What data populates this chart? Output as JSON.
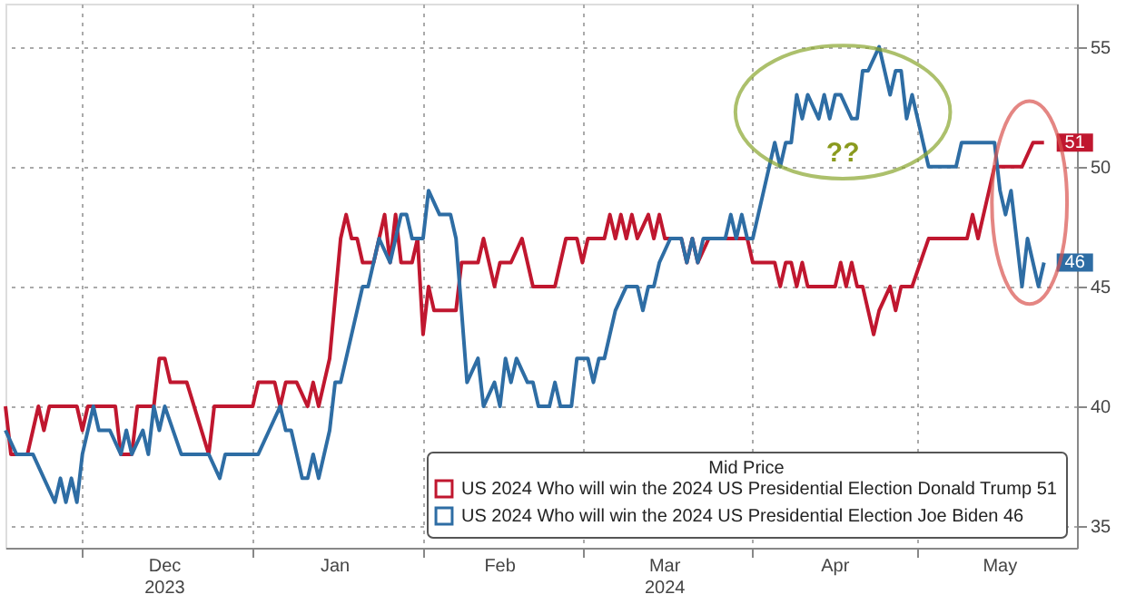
{
  "chart_data": {
    "type": "line",
    "legend_title": "Mid Price",
    "annotations": [
      "??"
    ],
    "xlim": [
      "2023-11-17",
      "2024-05-30"
    ],
    "xticks": [
      {
        "value": "2023-12-01",
        "label": null
      },
      {
        "value": "2023-12-16",
        "label": "Dec\n2023"
      },
      {
        "value": "2024-01-01",
        "label": null
      },
      {
        "value": "2024-01-16",
        "label": "Jan"
      },
      {
        "value": "2024-02-01",
        "label": null
      },
      {
        "value": "2024-02-15",
        "label": "Feb"
      },
      {
        "value": "2024-03-01",
        "label": null
      },
      {
        "value": "2024-03-16",
        "label": "Mar\n2024"
      },
      {
        "value": "2024-04-01",
        "label": null
      },
      {
        "value": "2024-04-16",
        "label": "Apr"
      },
      {
        "value": "2024-05-01",
        "label": null
      },
      {
        "value": "2024-05-16",
        "label": "May"
      }
    ],
    "ylim": [
      34.1,
      56.8
    ],
    "yticks": [
      35,
      40,
      45,
      50,
      55
    ],
    "grid": true,
    "legend": "bottom right",
    "series": [
      {
        "name": "US 2024 Who will win the 2024 US Presidential Election Donald Trump 51",
        "color": "#c0172f",
        "x": [
          "2023-11-17",
          "2023-11-18",
          "2023-11-21",
          "2023-11-22",
          "2023-11-23",
          "2023-11-24",
          "2023-11-25",
          "2023-11-30",
          "2023-12-01",
          "2023-12-02",
          "2023-12-07",
          "2023-12-08",
          "2023-12-10",
          "2023-12-11",
          "2023-12-14",
          "2023-12-15",
          "2023-12-16",
          "2023-12-17",
          "2023-12-20",
          "2023-12-24",
          "2023-12-25",
          "2024-01-01",
          "2024-01-02",
          "2024-01-05",
          "2024-01-06",
          "2024-01-07",
          "2024-01-09",
          "2024-01-11",
          "2024-01-12",
          "2024-01-13",
          "2024-01-14",
          "2024-01-15",
          "2024-01-17",
          "2024-01-18",
          "2024-01-19",
          "2024-01-20",
          "2024-01-21",
          "2024-01-23",
          "2024-01-24",
          "2024-01-25",
          "2024-01-26",
          "2024-01-27",
          "2024-01-28",
          "2024-01-30",
          "2024-01-31",
          "2024-02-01",
          "2024-02-02",
          "2024-02-03",
          "2024-02-07",
          "2024-02-08",
          "2024-02-11",
          "2024-02-12",
          "2024-02-14",
          "2024-02-15",
          "2024-02-17",
          "2024-02-19",
          "2024-02-21",
          "2024-02-25",
          "2024-02-27",
          "2024-02-29",
          "2024-03-01",
          "2024-03-02",
          "2024-03-05",
          "2024-03-06",
          "2024-03-07",
          "2024-03-08",
          "2024-03-09",
          "2024-03-10",
          "2024-03-11",
          "2024-03-13",
          "2024-03-14",
          "2024-03-15",
          "2024-03-16",
          "2024-03-19",
          "2024-03-20",
          "2024-03-21",
          "2024-03-22",
          "2024-03-24",
          "2024-03-31",
          "2024-04-01",
          "2024-04-05",
          "2024-04-06",
          "2024-04-07",
          "2024-04-08",
          "2024-04-09",
          "2024-04-10",
          "2024-04-11",
          "2024-04-16",
          "2024-04-17",
          "2024-04-18",
          "2024-04-19",
          "2024-04-20",
          "2024-04-21",
          "2024-04-22",
          "2024-04-23",
          "2024-04-24",
          "2024-04-26",
          "2024-04-27",
          "2024-04-28",
          "2024-04-30",
          "2024-05-03",
          "2024-05-10",
          "2024-05-11",
          "2024-05-12",
          "2024-05-14",
          "2024-05-15",
          "2024-05-20",
          "2024-05-22",
          "2024-05-24"
        ],
        "values": [
          40,
          38,
          38,
          39,
          40,
          39,
          40,
          40,
          39,
          40,
          40,
          38,
          38,
          40,
          40,
          42,
          42,
          41,
          41,
          38,
          40,
          40,
          41,
          41,
          40,
          41,
          41,
          40,
          41,
          40,
          41,
          42,
          47,
          48,
          47,
          47,
          46,
          46,
          47,
          48,
          46,
          48,
          46,
          46,
          47,
          43,
          45,
          44,
          44,
          46,
          46,
          47,
          45,
          46,
          46,
          47,
          45,
          45,
          47,
          47,
          46,
          47,
          47,
          48,
          47,
          48,
          47,
          48,
          47,
          48,
          47,
          48,
          47,
          47,
          46,
          47,
          46,
          47,
          47,
          46,
          46,
          45,
          46,
          46,
          45,
          46,
          45,
          45,
          46,
          45,
          46,
          45,
          45,
          44,
          43,
          44,
          45,
          44,
          45,
          45,
          47,
          47,
          48,
          47,
          49,
          50,
          50,
          51,
          51
        ],
        "value_labels": [
          null,
          null,
          null,
          null,
          null,
          null,
          null,
          null,
          null,
          null,
          null,
          null,
          null,
          null,
          null,
          null,
          null,
          null,
          null,
          null,
          null,
          null,
          null,
          null,
          null,
          null,
          null,
          null,
          null,
          null,
          null,
          null,
          null,
          null,
          null,
          null,
          null,
          null,
          null,
          null,
          null,
          null,
          null,
          null,
          null,
          null,
          null,
          null,
          null,
          null,
          null,
          null,
          null,
          null,
          null,
          null,
          null,
          null,
          null,
          null,
          null,
          null,
          null,
          null,
          null,
          null,
          null,
          null,
          null,
          null,
          null,
          null,
          null,
          null,
          null,
          null,
          null,
          null,
          null,
          null,
          null,
          null,
          null,
          null,
          null,
          null,
          null,
          null,
          null,
          null,
          null,
          null,
          null,
          null,
          null,
          null,
          null,
          null,
          null,
          null,
          null,
          null,
          null,
          null,
          null,
          null,
          null,
          null,
          "51"
        ]
      },
      {
        "name": "US 2024 Who will win the 2024 US Presidential Election Joe Biden 46",
        "color": "#2e6da4",
        "x": [
          "2023-11-17",
          "2023-11-19",
          "2023-11-22",
          "2023-11-24",
          "2023-11-26",
          "2023-11-27",
          "2023-11-28",
          "2023-11-29",
          "2023-11-30",
          "2023-12-01",
          "2023-12-02",
          "2023-12-03",
          "2023-12-04",
          "2023-12-06",
          "2023-12-08",
          "2023-12-09",
          "2023-12-10",
          "2023-12-12",
          "2023-12-13",
          "2023-12-14",
          "2023-12-15",
          "2023-12-16",
          "2023-12-19",
          "2023-12-24",
          "2023-12-26",
          "2023-12-27",
          "2024-01-02",
          "2024-01-04",
          "2024-01-06",
          "2024-01-07",
          "2024-01-08",
          "2024-01-10",
          "2024-01-11",
          "2024-01-12",
          "2024-01-13",
          "2024-01-15",
          "2024-01-16",
          "2024-01-17",
          "2024-01-21",
          "2024-01-22",
          "2024-01-24",
          "2024-01-26",
          "2024-01-28",
          "2024-01-29",
          "2024-01-30",
          "2024-02-01",
          "2024-02-02",
          "2024-02-04",
          "2024-02-06",
          "2024-02-07",
          "2024-02-08",
          "2024-02-09",
          "2024-02-11",
          "2024-02-12",
          "2024-02-14",
          "2024-02-15",
          "2024-02-16",
          "2024-02-17",
          "2024-02-18",
          "2024-02-20",
          "2024-02-21",
          "2024-02-22",
          "2024-02-24",
          "2024-02-25",
          "2024-02-26",
          "2024-02-28",
          "2024-02-29",
          "2024-03-02",
          "2024-03-03",
          "2024-03-04",
          "2024-03-05",
          "2024-03-06",
          "2024-03-07",
          "2024-03-09",
          "2024-03-11",
          "2024-03-12",
          "2024-03-13",
          "2024-03-14",
          "2024-03-15",
          "2024-03-17",
          "2024-03-19",
          "2024-03-20",
          "2024-03-21",
          "2024-03-22",
          "2024-03-23",
          "2024-03-27",
          "2024-03-28",
          "2024-03-29",
          "2024-03-30",
          "2024-03-31",
          "2024-04-01",
          "2024-04-02",
          "2024-04-03",
          "2024-04-04",
          "2024-04-05",
          "2024-04-06",
          "2024-04-07",
          "2024-04-08",
          "2024-04-09",
          "2024-04-10",
          "2024-04-11",
          "2024-04-13",
          "2024-04-14",
          "2024-04-15",
          "2024-04-16",
          "2024-04-17",
          "2024-04-19",
          "2024-04-20",
          "2024-04-21",
          "2024-04-22",
          "2024-04-24",
          "2024-04-26",
          "2024-04-27",
          "2024-04-28",
          "2024-04-29",
          "2024-04-30",
          "2024-05-01",
          "2024-05-03",
          "2024-05-08",
          "2024-05-09",
          "2024-05-15",
          "2024-05-16",
          "2024-05-17",
          "2024-05-18",
          "2024-05-20",
          "2024-05-21",
          "2024-05-23",
          "2024-05-24"
        ],
        "values": [
          39,
          38,
          38,
          37,
          36,
          37,
          36,
          37,
          36,
          38,
          39,
          40,
          39,
          39,
          38,
          39,
          38,
          39,
          38,
          40,
          39,
          40,
          38,
          38,
          37,
          38,
          38,
          39,
          40,
          39,
          39,
          37,
          37,
          38,
          37,
          39,
          41,
          41,
          45,
          45,
          47,
          46,
          48,
          48,
          47,
          47,
          49,
          48,
          48,
          47,
          44,
          41,
          42,
          40,
          41,
          40,
          42,
          41,
          42,
          41,
          41,
          40,
          40,
          41,
          40,
          40,
          42,
          42,
          41,
          42,
          42,
          43,
          44,
          45,
          45,
          44,
          45,
          45,
          46,
          47,
          47,
          46,
          47,
          46,
          47,
          47,
          48,
          47,
          48,
          47,
          47,
          48,
          49,
          50,
          51,
          50,
          51,
          51,
          53,
          52,
          53,
          52,
          53,
          52,
          53,
          53,
          52,
          52,
          54,
          54,
          55,
          53,
          54,
          54,
          52,
          53,
          52,
          50,
          50,
          51,
          51,
          49,
          48,
          49,
          45,
          47,
          45,
          46
        ],
        "value_labels": [
          null,
          null,
          null,
          null,
          null,
          null,
          null,
          null,
          null,
          null,
          null,
          null,
          null,
          null,
          null,
          null,
          null,
          null,
          null,
          null,
          null,
          null,
          null,
          null,
          null,
          null,
          null,
          null,
          null,
          null,
          null,
          null,
          null,
          null,
          null,
          null,
          null,
          null,
          null,
          null,
          null,
          null,
          null,
          null,
          null,
          null,
          null,
          null,
          null,
          null,
          null,
          null,
          null,
          null,
          null,
          null,
          null,
          null,
          null,
          null,
          null,
          null,
          null,
          null,
          null,
          null,
          null,
          null,
          null,
          null,
          null,
          null,
          null,
          null,
          null,
          null,
          null,
          null,
          null,
          null,
          null,
          null,
          null,
          null,
          null,
          null,
          null,
          null,
          null,
          null,
          null,
          null,
          null,
          null,
          null,
          null,
          null,
          null,
          null,
          null,
          null,
          null,
          null,
          null,
          null,
          null,
          null,
          null,
          null,
          null,
          null,
          null,
          null,
          null,
          null,
          null,
          null,
          null,
          null,
          null,
          null,
          null,
          null,
          null,
          null,
          null,
          null,
          "46"
        ]
      }
    ]
  }
}
